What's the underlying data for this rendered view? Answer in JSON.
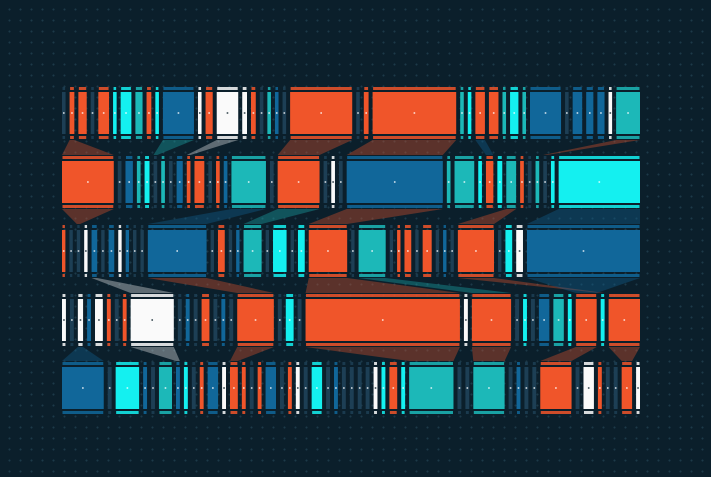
{
  "palette": {
    "background": "#0b1f2b",
    "o": "#f0552a",
    "c": "#14f0f0",
    "t": "#1cb8b8",
    "b": "#11679a",
    "w": "#fafafa",
    "d": "#1d3f55"
  },
  "rows": [
    [
      [
        3,
        "d"
      ],
      [
        4,
        "o"
      ],
      [
        7,
        "o"
      ],
      [
        3,
        "d"
      ],
      [
        9,
        "o"
      ],
      [
        3,
        "c"
      ],
      [
        9,
        "c"
      ],
      [
        6,
        "t"
      ],
      [
        4,
        "o"
      ],
      [
        3,
        "c"
      ],
      [
        26,
        "b"
      ],
      [
        3,
        "w"
      ],
      [
        6,
        "o"
      ],
      [
        18,
        "w"
      ],
      [
        4,
        "w"
      ],
      [
        4,
        "o"
      ],
      [
        3,
        "d"
      ],
      [
        3,
        "t"
      ],
      [
        3,
        "b"
      ],
      [
        3,
        "d"
      ],
      [
        52,
        "o"
      ],
      [
        3,
        "d"
      ],
      [
        4,
        "o"
      ],
      [
        70,
        "o"
      ],
      [
        3,
        "t"
      ],
      [
        3,
        "c"
      ],
      [
        8,
        "o"
      ],
      [
        8,
        "o"
      ],
      [
        3,
        "t"
      ],
      [
        7,
        "c"
      ],
      [
        3,
        "t"
      ],
      [
        26,
        "b"
      ],
      [
        3,
        "d"
      ],
      [
        8,
        "b"
      ],
      [
        6,
        "b"
      ],
      [
        6,
        "b"
      ],
      [
        3,
        "w"
      ],
      [
        20,
        "t"
      ]
    ],
    [
      [
        42,
        "o"
      ],
      [
        3,
        "d"
      ],
      [
        6,
        "b"
      ],
      [
        3,
        "t"
      ],
      [
        4,
        "c"
      ],
      [
        3,
        "d"
      ],
      [
        3,
        "t"
      ],
      [
        3,
        "d"
      ],
      [
        5,
        "b"
      ],
      [
        3,
        "o"
      ],
      [
        8,
        "o"
      ],
      [
        3,
        "d"
      ],
      [
        3,
        "o"
      ],
      [
        3,
        "b"
      ],
      [
        28,
        "t"
      ],
      [
        3,
        "d"
      ],
      [
        34,
        "o"
      ],
      [
        3,
        "d"
      ],
      [
        3,
        "w"
      ],
      [
        3,
        "d"
      ],
      [
        78,
        "b"
      ],
      [
        3,
        "t"
      ],
      [
        16,
        "t"
      ],
      [
        3,
        "c"
      ],
      [
        6,
        "o"
      ],
      [
        4,
        "c"
      ],
      [
        8,
        "t"
      ],
      [
        3,
        "o"
      ],
      [
        3,
        "d"
      ],
      [
        3,
        "t"
      ],
      [
        3,
        "d"
      ],
      [
        3,
        "c"
      ],
      [
        66,
        "c"
      ]
    ],
    [
      [
        3,
        "o"
      ],
      [
        3,
        "d"
      ],
      [
        3,
        "d"
      ],
      [
        3,
        "w"
      ],
      [
        5,
        "b"
      ],
      [
        3,
        "d"
      ],
      [
        5,
        "b"
      ],
      [
        3,
        "w"
      ],
      [
        3,
        "b"
      ],
      [
        3,
        "d"
      ],
      [
        3,
        "d"
      ],
      [
        52,
        "b"
      ],
      [
        3,
        "d"
      ],
      [
        6,
        "o"
      ],
      [
        3,
        "d"
      ],
      [
        3,
        "b"
      ],
      [
        16,
        "t"
      ],
      [
        3,
        "d"
      ],
      [
        12,
        "c"
      ],
      [
        3,
        "d"
      ],
      [
        6,
        "c"
      ],
      [
        34,
        "o"
      ],
      [
        3,
        "d"
      ],
      [
        24,
        "t"
      ],
      [
        3,
        "d"
      ],
      [
        3,
        "o"
      ],
      [
        6,
        "o"
      ],
      [
        3,
        "d"
      ],
      [
        8,
        "o"
      ],
      [
        3,
        "d"
      ],
      [
        3,
        "b"
      ],
      [
        3,
        "d"
      ],
      [
        32,
        "o"
      ],
      [
        3,
        "d"
      ],
      [
        6,
        "c"
      ],
      [
        6,
        "w"
      ],
      [
        100,
        "b"
      ]
    ],
    [
      [
        3,
        "w"
      ],
      [
        3,
        "d"
      ],
      [
        4,
        "w"
      ],
      [
        3,
        "b"
      ],
      [
        6,
        "w"
      ],
      [
        3,
        "o"
      ],
      [
        3,
        "d"
      ],
      [
        3,
        "o"
      ],
      [
        33,
        "w"
      ],
      [
        3,
        "d"
      ],
      [
        3,
        "b"
      ],
      [
        3,
        "d"
      ],
      [
        6,
        "o"
      ],
      [
        3,
        "d"
      ],
      [
        3,
        "b"
      ],
      [
        3,
        "d"
      ],
      [
        28,
        "o"
      ],
      [
        3,
        "d"
      ],
      [
        6,
        "c"
      ],
      [
        3,
        "d"
      ],
      [
        118,
        "o"
      ],
      [
        3,
        "w"
      ],
      [
        30,
        "o"
      ],
      [
        3,
        "d"
      ],
      [
        3,
        "c"
      ],
      [
        3,
        "d"
      ],
      [
        8,
        "b"
      ],
      [
        8,
        "t"
      ],
      [
        3,
        "c"
      ],
      [
        16,
        "o"
      ],
      [
        3,
        "c"
      ],
      [
        24,
        "o"
      ]
    ],
    [
      [
        32,
        "b"
      ],
      [
        3,
        "d"
      ],
      [
        18,
        "c"
      ],
      [
        3,
        "b"
      ],
      [
        3,
        "d"
      ],
      [
        10,
        "t"
      ],
      [
        3,
        "b"
      ],
      [
        3,
        "c"
      ],
      [
        3,
        "d"
      ],
      [
        3,
        "o"
      ],
      [
        8,
        "b"
      ],
      [
        3,
        "w"
      ],
      [
        6,
        "o"
      ],
      [
        3,
        "o"
      ],
      [
        3,
        "d"
      ],
      [
        3,
        "o"
      ],
      [
        8,
        "b"
      ],
      [
        3,
        "d"
      ],
      [
        3,
        "o"
      ],
      [
        3,
        "w"
      ],
      [
        3,
        "d"
      ],
      [
        8,
        "c"
      ],
      [
        3,
        "d"
      ],
      [
        3,
        "b"
      ],
      [
        3,
        "d"
      ],
      [
        3,
        "d"
      ],
      [
        3,
        "d"
      ],
      [
        3,
        "d"
      ],
      [
        3,
        "w"
      ],
      [
        3,
        "c"
      ],
      [
        6,
        "o"
      ],
      [
        3,
        "c"
      ],
      [
        34,
        "t"
      ],
      [
        3,
        "d"
      ],
      [
        3,
        "d"
      ],
      [
        24,
        "t"
      ],
      [
        3,
        "d"
      ],
      [
        3,
        "b"
      ],
      [
        3,
        "d"
      ],
      [
        3,
        "d"
      ],
      [
        24,
        "o"
      ],
      [
        3,
        "d"
      ],
      [
        8,
        "w"
      ],
      [
        3,
        "o"
      ],
      [
        3,
        "d"
      ],
      [
        3,
        "d"
      ],
      [
        8,
        "o"
      ],
      [
        3,
        "w"
      ]
    ]
  ],
  "links": [
    [
      0,
      1,
      1,
      0,
      "o"
    ],
    [
      0,
      10,
      1,
      5,
      "t"
    ],
    [
      0,
      13,
      1,
      9,
      "w"
    ],
    [
      0,
      20,
      1,
      16,
      "o"
    ],
    [
      0,
      23,
      1,
      20,
      "o"
    ],
    [
      0,
      26,
      1,
      24,
      "b"
    ],
    [
      0,
      37,
      1,
      30,
      "o"
    ],
    [
      1,
      0,
      2,
      2,
      "o"
    ],
    [
      1,
      14,
      2,
      11,
      "b"
    ],
    [
      1,
      16,
      2,
      16,
      "t"
    ],
    [
      1,
      20,
      2,
      21,
      "o"
    ],
    [
      1,
      26,
      2,
      32,
      "o"
    ],
    [
      1,
      32,
      2,
      36,
      "b"
    ],
    [
      2,
      4,
      3,
      8,
      "w"
    ],
    [
      2,
      11,
      3,
      16,
      "o"
    ],
    [
      2,
      21,
      3,
      20,
      "o"
    ],
    [
      2,
      23,
      3,
      22,
      "t"
    ],
    [
      2,
      32,
      3,
      30,
      "o"
    ],
    [
      2,
      36,
      3,
      29,
      "b"
    ],
    [
      3,
      2,
      4,
      0,
      "b"
    ],
    [
      3,
      8,
      4,
      6,
      "w"
    ],
    [
      3,
      16,
      4,
      12,
      "o"
    ],
    [
      3,
      20,
      4,
      32,
      "o"
    ],
    [
      3,
      22,
      4,
      35,
      "o"
    ],
    [
      3,
      29,
      4,
      40,
      "o"
    ],
    [
      3,
      31,
      4,
      46,
      "o"
    ]
  ]
}
